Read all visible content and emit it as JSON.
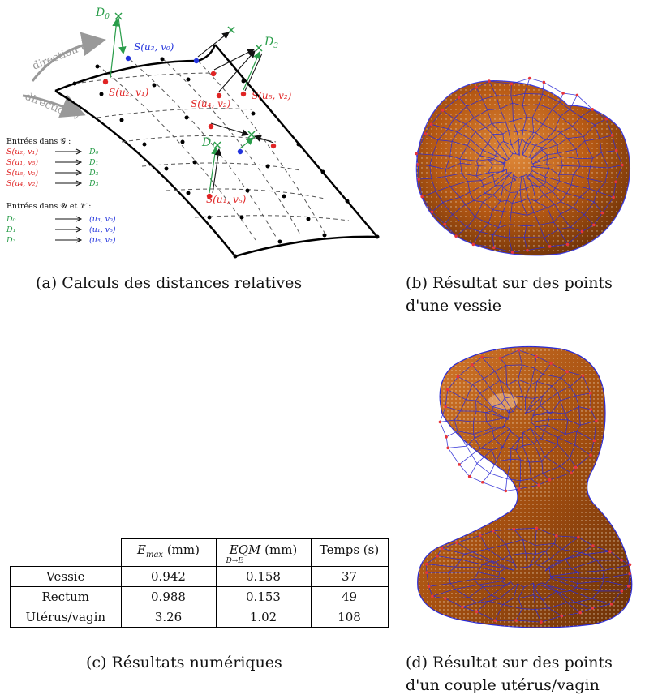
{
  "figure_a": {
    "direction_u": "direction u",
    "direction_v": "direction v",
    "points": {
      "D0": "D",
      "D0_sub": "0",
      "D1": "D",
      "D1_sub": "1",
      "D3": "D",
      "D3_sub": "3",
      "S_u3v0": "S(u₃, v₀)",
      "S_u2v1": "S(u₂, v₁)",
      "S_u4v2": "S(u₄, v₂)",
      "S_u5v2": "S(u₅, v₂)",
      "S_u1v5": "S(u₁, v₅)"
    },
    "legend_G_title": "Entrées dans 𝒢 :",
    "legend_G": [
      {
        "left": "S(u₂, v₁)",
        "right": "D₀"
      },
      {
        "left": "S(u₁, v₅)",
        "right": "D₁"
      },
      {
        "left": "S(u₅, v₂)",
        "right": "D₃"
      },
      {
        "left": "S(u₄, v₂)",
        "right": "D₃"
      }
    ],
    "legend_UV_title": "Entrées dans 𝒰 et 𝒱 :",
    "legend_UV": [
      {
        "left": "D₀",
        "right": "(u₃, v₀)"
      },
      {
        "left": "D₁",
        "right": "(u₁, v₅)"
      },
      {
        "left": "D₃",
        "right": "(u₅, v₂)"
      }
    ],
    "colors": {
      "green": "#2a9d4a",
      "red": "#e02424",
      "blue": "#2233dd",
      "gray": "#999999"
    }
  },
  "captions": {
    "a": "(a) Calculs des distances relatives",
    "b_line1": "(b) Résultat sur des points",
    "b_line2": "d'une vessie",
    "c": "(c) Résultats numériques",
    "d_line1": "(d) Résultat sur des points",
    "d_line2": "d'un couple utérus/vagin"
  },
  "table": {
    "col1_main": "E",
    "col1_sub": "max",
    "col1_unit": " (mm)",
    "col2_main": "EQM",
    "col2_unit": " (mm)",
    "col2_sub": "D→E",
    "col3": "Temps (s)",
    "rows": [
      {
        "label": "Vessie",
        "emax": "0.942",
        "eqm": "0.158",
        "temps": "37"
      },
      {
        "label": "Rectum",
        "emax": "0.988",
        "eqm": "0.153",
        "temps": "49"
      },
      {
        "label": "Utérus/vagin",
        "emax": "3.26",
        "eqm": "1.02",
        "temps": "108"
      }
    ]
  },
  "render_colors": {
    "surface": "#b85a14",
    "mesh": "#2b2bd6",
    "vertex": "#e8343b",
    "points": "#f2e6d0"
  }
}
